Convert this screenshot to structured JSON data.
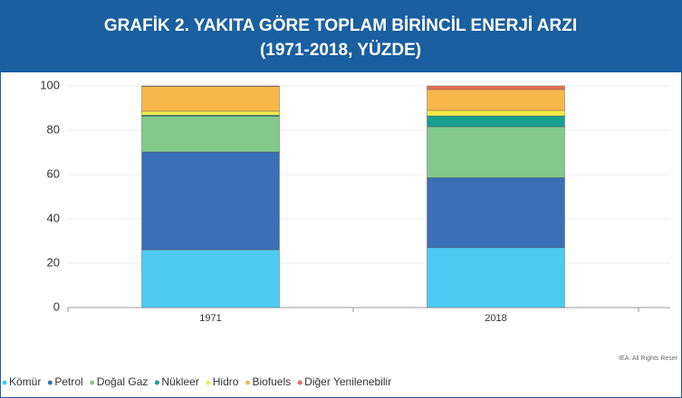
{
  "chart_data": {
    "type": "stacked_bar",
    "title": [
      "GRAFİK 2. YAKITA GÖRE TOPLAM BİRİNCİL ENERJİ ARZI",
      "(1971-2018, YÜZDE)"
    ],
    "categories": [
      "1971",
      "2018"
    ],
    "series": [
      {
        "name": "Kömür",
        "color": "#4ecaf2",
        "values": [
          26.1,
          27
        ]
      },
      {
        "name": "Petrol",
        "color": "#3b6fb6",
        "values": [
          44.1,
          31.6
        ]
      },
      {
        "name": "Doğal Gaz",
        "color": "#82c98a",
        "values": [
          16.1,
          23
        ]
      },
      {
        "name": "Nükleer",
        "color": "#1a9e8f",
        "values": [
          0.5,
          4.9
        ]
      },
      {
        "name": "Hidro",
        "color": "#f5e84a",
        "values": [
          1.8,
          2.5
        ]
      },
      {
        "name": "Biofuels",
        "color": "#f8b74a",
        "values": [
          11.2,
          9.4
        ]
      },
      {
        "name": "Diğer Yenilenebilir",
        "color": "#e8705a",
        "values": [
          0.2,
          1.6
        ]
      }
    ],
    "ylim": [
      0,
      100
    ],
    "yticks": [
      0,
      20,
      40,
      60,
      80,
      100
    ],
    "grid": true,
    "source": "IEA. All Rights Reser"
  }
}
